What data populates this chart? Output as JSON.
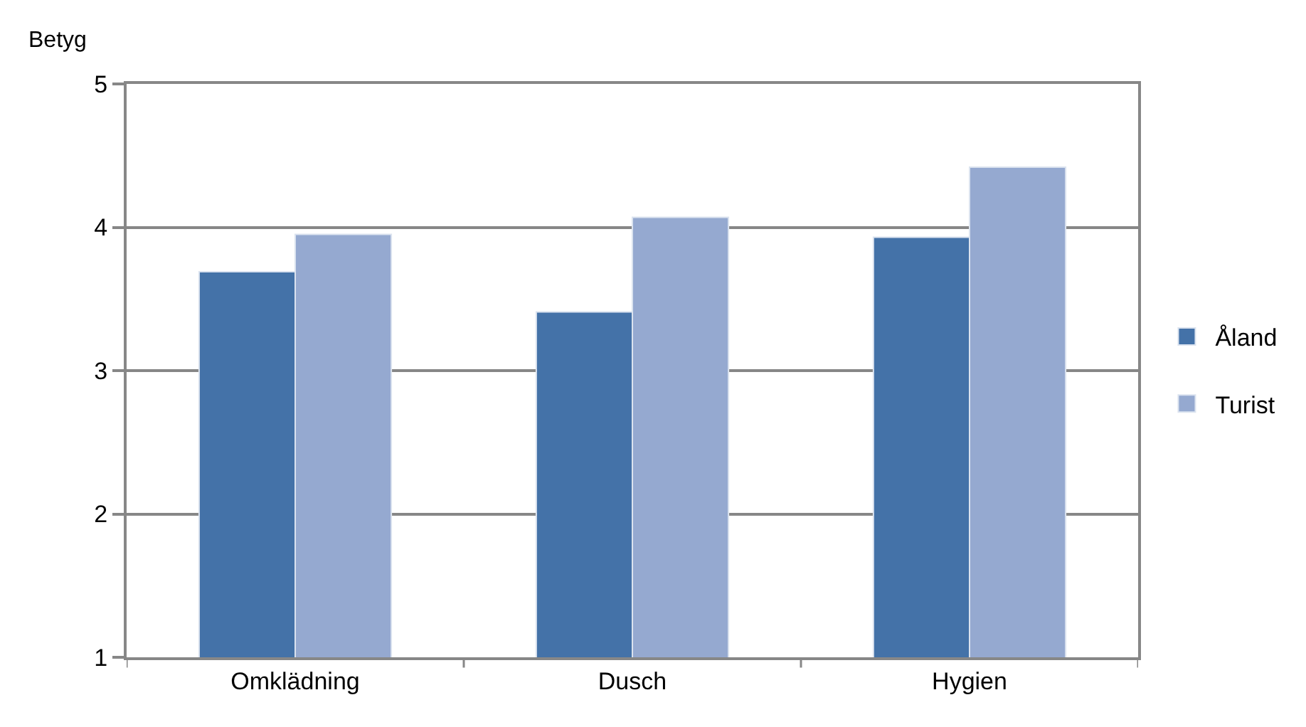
{
  "chart_data": {
    "type": "bar",
    "ylabel": "Betyg",
    "categories": [
      "Omklädning",
      "Dusch",
      "Hygien"
    ],
    "series": [
      {
        "name": "Åland",
        "color": "#4472a8",
        "values": [
          3.69,
          3.41,
          3.93
        ]
      },
      {
        "name": "Turist",
        "color": "#95a9d0",
        "values": [
          3.95,
          4.07,
          4.42
        ]
      }
    ],
    "ylim": [
      1,
      5
    ],
    "yticks": [
      1,
      2,
      3,
      4,
      5
    ],
    "grid": "y",
    "legend": "right"
  }
}
